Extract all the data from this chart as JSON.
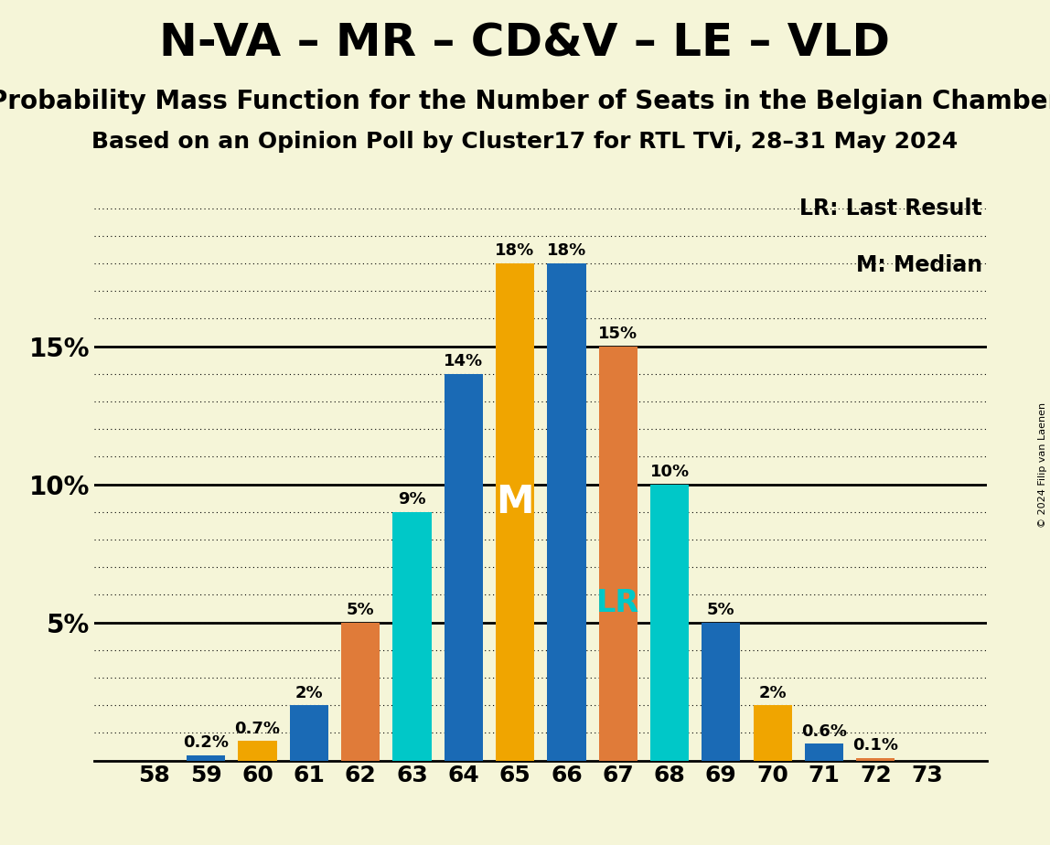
{
  "title1": "N-VA – MR – CD&V – LE – VLD",
  "title2": "Probability Mass Function for the Number of Seats in the Belgian Chamber",
  "title3": "Based on an Opinion Poll by Cluster17 for RTL TVi, 28–31 May 2024",
  "copyright": "© 2024 Filip van Laenen",
  "seats": [
    58,
    59,
    60,
    61,
    62,
    63,
    64,
    65,
    66,
    67,
    68,
    69,
    70,
    71,
    72,
    73
  ],
  "values": [
    0.0,
    0.002,
    0.007,
    0.02,
    0.05,
    0.09,
    0.14,
    0.18,
    0.18,
    0.15,
    0.1,
    0.05,
    0.02,
    0.006,
    0.001,
    0.0
  ],
  "bar_colors": [
    "#1a6ab5",
    "#1a6ab5",
    "#f0a500",
    "#1a6ab5",
    "#e07b39",
    "#00c8c8",
    "#1a6ab5",
    "#f0a500",
    "#1a6ab5",
    "#e07b39",
    "#00c8c8",
    "#1a6ab5",
    "#f0a500",
    "#1a6ab5",
    "#e07b39",
    "#e07b39"
  ],
  "median_seat": 65,
  "lr_seat": 67,
  "background_color": "#f5f5d8",
  "label_fontsize": 13,
  "title1_fontsize": 36,
  "title2_fontsize": 20,
  "title3_fontsize": 18,
  "ylabel_ticks": [
    0.05,
    0.1,
    0.15
  ],
  "ylabel_labels": [
    "5%",
    "10%",
    "15%"
  ],
  "legend_lr": "LR: Last Result",
  "legend_m": "M: Median"
}
